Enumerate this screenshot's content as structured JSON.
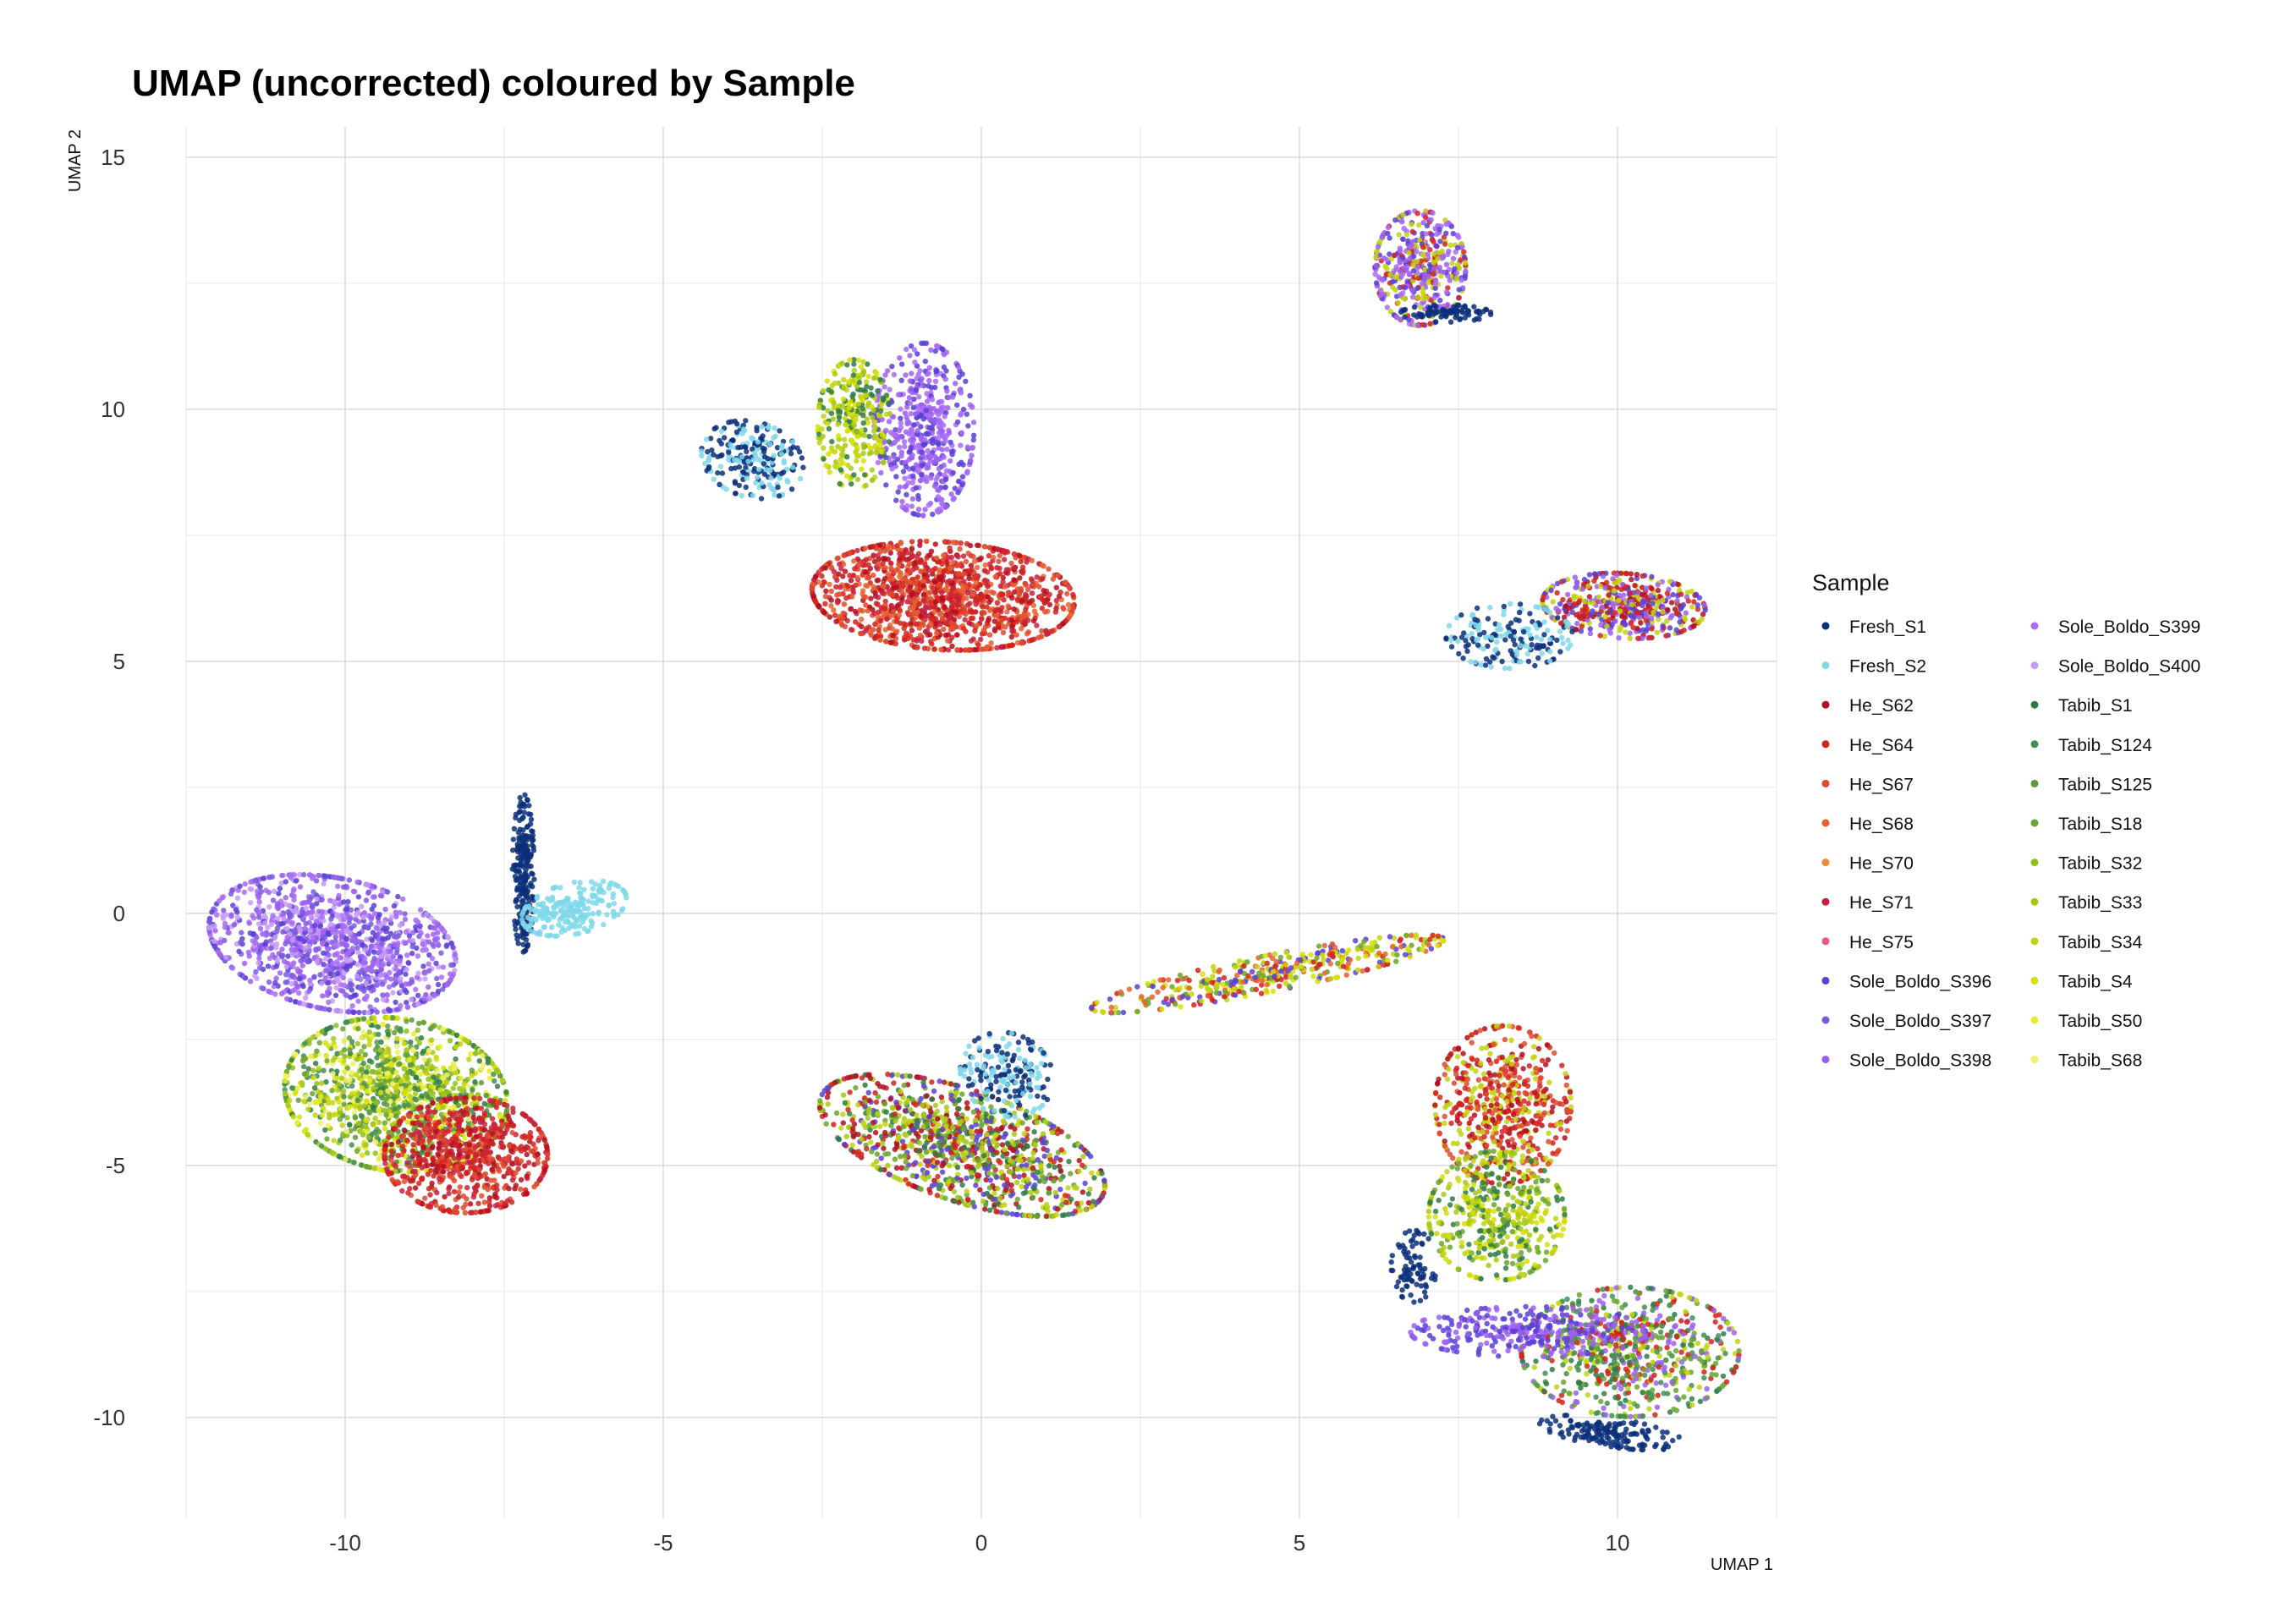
{
  "chart_data": {
    "type": "scatter",
    "title": "UMAP (uncorrected) coloured by Sample",
    "xlabel": "UMAP 1",
    "ylabel": "UMAP 2",
    "xlim": [
      -12.5,
      12.5
    ],
    "ylim": [
      -12,
      15.6
    ],
    "x_ticks": [
      -10,
      -5,
      0,
      5,
      10
    ],
    "x_tick_labels": [
      "-10",
      "-5",
      "0",
      "5",
      "10"
    ],
    "y_ticks": [
      -10,
      -5,
      0,
      5,
      10,
      15
    ],
    "y_tick_labels": [
      "-10",
      "-5",
      "0",
      "5",
      "10",
      "15"
    ],
    "grid": true,
    "legend": {
      "title": "Sample",
      "placement": "right",
      "columns": 2
    },
    "series": [
      {
        "name": "Fresh_S1",
        "color": "#0b2f7a"
      },
      {
        "name": "Fresh_S2",
        "color": "#7fd8ea"
      },
      {
        "name": "He_S62",
        "color": "#b40f1f"
      },
      {
        "name": "He_S64",
        "color": "#d4231c"
      },
      {
        "name": "He_S67",
        "color": "#e04a2a"
      },
      {
        "name": "He_S68",
        "color": "#e8602f"
      },
      {
        "name": "He_S70",
        "color": "#f08a3a"
      },
      {
        "name": "He_S71",
        "color": "#c8213e"
      },
      {
        "name": "He_S75",
        "color": "#e85a7a"
      },
      {
        "name": "Sole_Boldo_S396",
        "color": "#5b3fd6"
      },
      {
        "name": "Sole_Boldo_S397",
        "color": "#7a5ae0"
      },
      {
        "name": "Sole_Boldo_S398",
        "color": "#9c5ff0"
      },
      {
        "name": "Sole_Boldo_S399",
        "color": "#a86cf5"
      },
      {
        "name": "Sole_Boldo_S400",
        "color": "#c69bf7"
      },
      {
        "name": "Tabib_S1",
        "color": "#2e7d46"
      },
      {
        "name": "Tabib_S124",
        "color": "#3f8f52"
      },
      {
        "name": "Tabib_S125",
        "color": "#5f9a3c"
      },
      {
        "name": "Tabib_S18",
        "color": "#6aa62c"
      },
      {
        "name": "Tabib_S32",
        "color": "#8fbf1f"
      },
      {
        "name": "Tabib_S33",
        "color": "#a9c815"
      },
      {
        "name": "Tabib_S34",
        "color": "#c2d40e"
      },
      {
        "name": "Tabib_S4",
        "color": "#d6e000"
      },
      {
        "name": "Tabib_S50",
        "color": "#e6ec2a"
      },
      {
        "name": "Tabib_S68",
        "color": "#f1f06a"
      }
    ],
    "clusters": [
      {
        "center": [
          -10.2,
          -0.6
        ],
        "spread": [
          1.4,
          0.9
        ],
        "angle": -18,
        "n": 1200,
        "samples": [
          "Sole_Boldo_S398",
          "Sole_Boldo_S399",
          "Sole_Boldo_S400",
          "Sole_Boldo_S396",
          "Sole_Boldo_S397"
        ]
      },
      {
        "center": [
          -9.2,
          -3.6
        ],
        "spread": [
          1.25,
          1.05
        ],
        "angle": -20,
        "n": 1300,
        "samples": [
          "Tabib_S32",
          "Tabib_S33",
          "Tabib_S34",
          "Tabib_S4",
          "Tabib_S18",
          "Tabib_S1",
          "Tabib_S124",
          "Tabib_S125",
          "Tabib_S50",
          "Tabib_S68"
        ]
      },
      {
        "center": [
          -8.1,
          -4.8
        ],
        "spread": [
          0.9,
          0.8
        ],
        "angle": 0,
        "n": 700,
        "samples": [
          "He_S62",
          "He_S64",
          "He_S71",
          "He_S67"
        ]
      },
      {
        "center": [
          -7.2,
          0.8
        ],
        "spread": [
          0.12,
          1.1
        ],
        "angle": 0,
        "n": 220,
        "samples": [
          "Fresh_S1"
        ]
      },
      {
        "center": [
          -6.4,
          0.1
        ],
        "spread": [
          0.6,
          0.35
        ],
        "angle": 20,
        "n": 220,
        "samples": [
          "Fresh_S2"
        ]
      },
      {
        "center": [
          -0.9,
          9.6
        ],
        "spread": [
          0.55,
          1.2
        ],
        "angle": 0,
        "n": 500,
        "samples": [
          "Sole_Boldo_S398",
          "Sole_Boldo_S399",
          "Sole_Boldo_S396"
        ]
      },
      {
        "center": [
          -2.0,
          9.7
        ],
        "spread": [
          0.4,
          0.9
        ],
        "angle": 0,
        "n": 300,
        "samples": [
          "Tabib_S34",
          "Tabib_S33",
          "Tabib_S4",
          "Tabib_S1"
        ]
      },
      {
        "center": [
          -0.6,
          6.3
        ],
        "spread": [
          1.45,
          0.75
        ],
        "angle": -5,
        "n": 1300,
        "samples": [
          "He_S64",
          "He_S62",
          "He_S67",
          "He_S71",
          "He_S68"
        ]
      },
      {
        "center": [
          -3.6,
          9.0
        ],
        "spread": [
          0.6,
          0.5
        ],
        "angle": -40,
        "n": 220,
        "samples": [
          "Fresh_S1",
          "Fresh_S2"
        ]
      },
      {
        "center": [
          6.9,
          12.8
        ],
        "spread": [
          0.5,
          0.8
        ],
        "angle": 0,
        "n": 450,
        "samples": [
          "Sole_Boldo_S398",
          "Sole_Boldo_S396",
          "Sole_Boldo_S399",
          "Tabib_S34",
          "He_S64"
        ]
      },
      {
        "center": [
          7.3,
          11.9
        ],
        "spread": [
          0.5,
          0.12
        ],
        "angle": 0,
        "n": 80,
        "samples": [
          "Fresh_S1"
        ]
      },
      {
        "center": [
          10.1,
          6.1
        ],
        "spread": [
          0.9,
          0.45
        ],
        "angle": -5,
        "n": 480,
        "samples": [
          "Sole_Boldo_S396",
          "Sole_Boldo_S398",
          "He_S64",
          "He_S62",
          "Tabib_S34"
        ]
      },
      {
        "center": [
          8.3,
          5.5
        ],
        "spread": [
          0.7,
          0.45
        ],
        "angle": 0,
        "n": 180,
        "samples": [
          "Fresh_S1",
          "Fresh_S2"
        ]
      },
      {
        "center": [
          4.5,
          -1.2
        ],
        "spread": [
          2.0,
          0.25
        ],
        "angle": 14,
        "n": 420,
        "samples": [
          "Tabib_S34",
          "He_S64",
          "Tabib_S4",
          "He_S68",
          "Tabib_S18",
          "Sole_Boldo_S396"
        ]
      },
      {
        "center": [
          -0.3,
          -4.6
        ],
        "spread": [
          1.7,
          0.75
        ],
        "angle": -25,
        "n": 1100,
        "samples": [
          "Sole_Boldo_S396",
          "Tabib_S34",
          "Tabib_S18",
          "He_S64",
          "He_S62",
          "Tabib_S1",
          "Tabib_S33"
        ]
      },
      {
        "center": [
          0.4,
          -3.2
        ],
        "spread": [
          0.5,
          0.6
        ],
        "angle": 20,
        "n": 200,
        "samples": [
          "Fresh_S1",
          "Fresh_S2"
        ]
      },
      {
        "center": [
          8.2,
          -3.8
        ],
        "spread": [
          0.75,
          1.1
        ],
        "angle": 0,
        "n": 550,
        "samples": [
          "He_S64",
          "He_S62",
          "He_S67",
          "Tabib_S34"
        ]
      },
      {
        "center": [
          8.1,
          -6.0
        ],
        "spread": [
          0.75,
          0.9
        ],
        "angle": 0,
        "n": 450,
        "samples": [
          "Tabib_S34",
          "Tabib_S33",
          "Tabib_S18",
          "Tabib_S1",
          "Tabib_S4"
        ]
      },
      {
        "center": [
          10.2,
          -8.7
        ],
        "spread": [
          1.2,
          0.9
        ],
        "angle": 0,
        "n": 700,
        "samples": [
          "Tabib_S18",
          "Tabib_S1",
          "Tabib_S124",
          "Sole_Boldo_S398",
          "He_S64",
          "Tabib_S34"
        ]
      },
      {
        "center": [
          8.6,
          -8.3
        ],
        "spread": [
          1.3,
          0.35
        ],
        "angle": 0,
        "n": 300,
        "samples": [
          "Sole_Boldo_S398",
          "Sole_Boldo_S396"
        ]
      },
      {
        "center": [
          9.9,
          -10.3
        ],
        "spread": [
          0.8,
          0.2
        ],
        "angle": -10,
        "n": 150,
        "samples": [
          "Fresh_S1"
        ]
      },
      {
        "center": [
          6.8,
          -7.0
        ],
        "spread": [
          0.25,
          0.5
        ],
        "angle": 0,
        "n": 80,
        "samples": [
          "Fresh_S1"
        ]
      }
    ]
  }
}
